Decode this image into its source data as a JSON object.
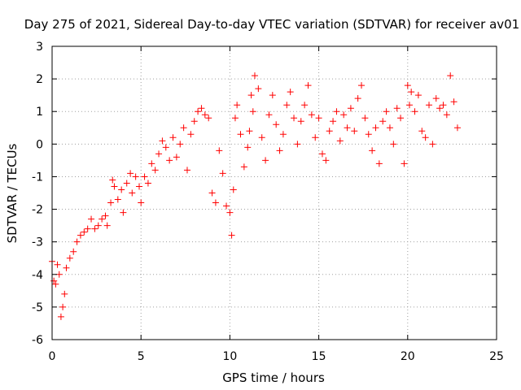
{
  "chart_data": {
    "type": "scatter",
    "title": "Day 275 of 2021, Sidereal Day-to-day VTEC variation (SDTVAR) for receiver av01",
    "xlabel": "GPS time / hours",
    "ylabel": "SDTVAR / TECUs",
    "xlim": [
      0,
      25
    ],
    "ylim": [
      -6,
      3
    ],
    "x_ticks": [
      0,
      5,
      10,
      15,
      20,
      25
    ],
    "y_ticks": [
      -6,
      -5,
      -4,
      -3,
      -2,
      -1,
      0,
      1,
      2,
      3
    ],
    "grid": true,
    "marker": "+",
    "series": [
      {
        "name": "SDTVAR",
        "color": "#ff0000",
        "points": [
          [
            0.0,
            -3.6
          ],
          [
            0.1,
            -4.2
          ],
          [
            0.2,
            -4.3
          ],
          [
            0.3,
            -3.7
          ],
          [
            0.4,
            -4.0
          ],
          [
            0.5,
            -5.3
          ],
          [
            0.6,
            -5.0
          ],
          [
            0.7,
            -4.6
          ],
          [
            0.8,
            -3.8
          ],
          [
            1.0,
            -3.5
          ],
          [
            1.2,
            -3.3
          ],
          [
            1.4,
            -3.0
          ],
          [
            1.6,
            -2.8
          ],
          [
            1.8,
            -2.7
          ],
          [
            2.0,
            -2.6
          ],
          [
            2.2,
            -2.3
          ],
          [
            2.4,
            -2.6
          ],
          [
            2.6,
            -2.5
          ],
          [
            2.8,
            -2.3
          ],
          [
            3.0,
            -2.2
          ],
          [
            3.1,
            -2.5
          ],
          [
            3.3,
            -1.8
          ],
          [
            3.4,
            -1.1
          ],
          [
            3.5,
            -1.3
          ],
          [
            3.7,
            -1.7
          ],
          [
            3.9,
            -1.4
          ],
          [
            4.0,
            -2.1
          ],
          [
            4.2,
            -1.2
          ],
          [
            4.4,
            -0.9
          ],
          [
            4.5,
            -1.5
          ],
          [
            4.7,
            -1.0
          ],
          [
            4.9,
            -1.3
          ],
          [
            5.0,
            -1.8
          ],
          [
            5.2,
            -1.0
          ],
          [
            5.4,
            -1.2
          ],
          [
            5.6,
            -0.6
          ],
          [
            5.8,
            -0.8
          ],
          [
            6.0,
            -0.3
          ],
          [
            6.2,
            0.1
          ],
          [
            6.4,
            -0.1
          ],
          [
            6.6,
            -0.5
          ],
          [
            6.8,
            0.2
          ],
          [
            7.0,
            -0.4
          ],
          [
            7.2,
            0.0
          ],
          [
            7.4,
            0.5
          ],
          [
            7.6,
            -0.8
          ],
          [
            7.8,
            0.3
          ],
          [
            8.0,
            0.7
          ],
          [
            8.2,
            1.0
          ],
          [
            8.4,
            1.1
          ],
          [
            8.6,
            0.9
          ],
          [
            8.8,
            0.8
          ],
          [
            9.0,
            -1.5
          ],
          [
            9.2,
            -1.8
          ],
          [
            9.4,
            -0.2
          ],
          [
            9.6,
            -0.9
          ],
          [
            9.8,
            -1.9
          ],
          [
            10.0,
            -2.1
          ],
          [
            10.1,
            -2.8
          ],
          [
            10.2,
            -1.4
          ],
          [
            10.3,
            0.8
          ],
          [
            10.4,
            1.2
          ],
          [
            10.6,
            0.3
          ],
          [
            10.8,
            -0.7
          ],
          [
            11.0,
            -0.1
          ],
          [
            11.1,
            0.4
          ],
          [
            11.2,
            1.5
          ],
          [
            11.3,
            1.0
          ],
          [
            11.4,
            2.1
          ],
          [
            11.6,
            1.7
          ],
          [
            11.8,
            0.2
          ],
          [
            12.0,
            -0.5
          ],
          [
            12.2,
            0.9
          ],
          [
            12.4,
            1.5
          ],
          [
            12.6,
            0.6
          ],
          [
            12.8,
            -0.2
          ],
          [
            13.0,
            0.3
          ],
          [
            13.2,
            1.2
          ],
          [
            13.4,
            1.6
          ],
          [
            13.6,
            0.8
          ],
          [
            13.8,
            0.0
          ],
          [
            14.0,
            0.7
          ],
          [
            14.2,
            1.2
          ],
          [
            14.4,
            1.8
          ],
          [
            14.6,
            0.9
          ],
          [
            14.8,
            0.2
          ],
          [
            15.0,
            0.8
          ],
          [
            15.2,
            -0.3
          ],
          [
            15.4,
            -0.5
          ],
          [
            15.6,
            0.4
          ],
          [
            15.8,
            0.7
          ],
          [
            16.0,
            1.0
          ],
          [
            16.2,
            0.1
          ],
          [
            16.4,
            0.9
          ],
          [
            16.6,
            0.5
          ],
          [
            16.8,
            1.1
          ],
          [
            17.0,
            0.4
          ],
          [
            17.2,
            1.4
          ],
          [
            17.4,
            1.8
          ],
          [
            17.6,
            0.8
          ],
          [
            17.8,
            0.3
          ],
          [
            18.0,
            -0.2
          ],
          [
            18.2,
            0.5
          ],
          [
            18.4,
            -0.6
          ],
          [
            18.6,
            0.7
          ],
          [
            18.8,
            1.0
          ],
          [
            19.0,
            0.5
          ],
          [
            19.2,
            0.0
          ],
          [
            19.4,
            1.1
          ],
          [
            19.6,
            0.8
          ],
          [
            19.8,
            -0.6
          ],
          [
            20.0,
            1.8
          ],
          [
            20.1,
            1.2
          ],
          [
            20.2,
            1.6
          ],
          [
            20.4,
            1.0
          ],
          [
            20.6,
            1.5
          ],
          [
            20.8,
            0.4
          ],
          [
            21.0,
            0.2
          ],
          [
            21.2,
            1.2
          ],
          [
            21.4,
            0.0
          ],
          [
            21.6,
            1.4
          ],
          [
            21.8,
            1.1
          ],
          [
            22.0,
            1.2
          ],
          [
            22.2,
            0.9
          ],
          [
            22.4,
            2.1
          ],
          [
            22.6,
            1.3
          ],
          [
            22.8,
            0.5
          ]
        ]
      }
    ]
  }
}
